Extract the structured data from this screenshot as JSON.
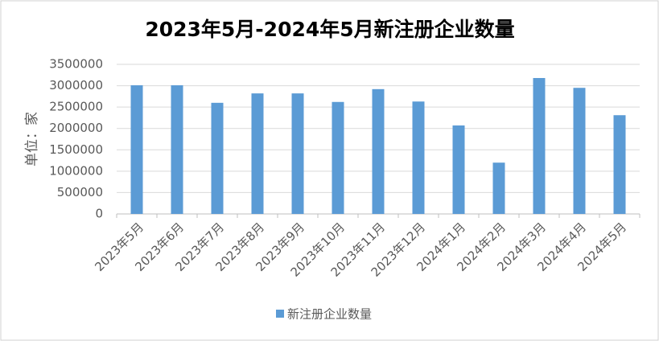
{
  "chart_data": {
    "type": "bar",
    "title": "2023年5月-2024年5月新注册企业数量",
    "y_label": "单位：家",
    "categories": [
      "2023年5月",
      "2023年6月",
      "2023年7月",
      "2023年8月",
      "2023年9月",
      "2023年10月",
      "2023年11月",
      "2023年12月",
      "2024年1月",
      "2024年2月",
      "2024年3月",
      "2024年4月",
      "2024年5月"
    ],
    "series": [
      {
        "name": "新注册企业数量",
        "color": "#5b9bd5",
        "values": [
          3010000,
          3010000,
          2600000,
          2820000,
          2820000,
          2620000,
          2920000,
          2630000,
          2070000,
          1200000,
          3180000,
          2950000,
          2310000
        ]
      }
    ],
    "ylim": [
      0,
      3500000
    ],
    "yticks": [
      0,
      500000,
      1000000,
      1500000,
      2000000,
      2500000,
      3000000,
      3500000
    ],
    "grid": true,
    "legend": "bottom"
  }
}
